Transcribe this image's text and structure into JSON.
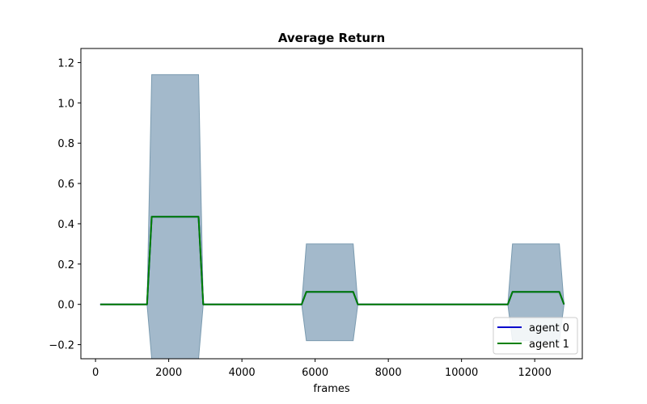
{
  "chart_data": {
    "type": "line",
    "title": "Average Return",
    "xlabel": "frames",
    "ylabel": "",
    "xlim": [
      -400,
      13300
    ],
    "ylim": [
      -0.27,
      1.27
    ],
    "xticks": [
      0,
      2000,
      4000,
      6000,
      8000,
      10000,
      12000
    ],
    "xtick_labels": [
      "0",
      "2000",
      "4000",
      "6000",
      "8000",
      "10000",
      "12000"
    ],
    "yticks": [
      -0.2,
      0.0,
      0.2,
      0.4,
      0.6,
      0.8,
      1.0,
      1.2
    ],
    "ytick_labels": [
      "−0.2",
      "0.0",
      "0.2",
      "0.4",
      "0.6",
      "0.8",
      "1.0",
      "1.2"
    ],
    "x": [
      128,
      1408,
      1536,
      2816,
      2944,
      5632,
      5760,
      7040,
      7168,
      11264,
      11392,
      12672,
      12800
    ],
    "series": [
      {
        "name": "agent 0",
        "color": "#0000cc",
        "values": [
          0.0,
          0.0,
          0.435,
          0.435,
          0.0,
          0.0,
          0.062,
          0.062,
          0.0,
          0.0,
          0.062,
          0.062,
          0.0
        ],
        "band_upper": [
          0.0,
          0.0,
          1.14,
          1.14,
          0.0,
          0.0,
          0.3,
          0.3,
          0.0,
          0.0,
          0.3,
          0.3,
          0.0
        ],
        "band_lower": [
          0.0,
          0.0,
          -0.27,
          -0.27,
          0.0,
          0.0,
          -0.18,
          -0.18,
          0.0,
          0.0,
          -0.18,
          -0.18,
          0.0
        ]
      },
      {
        "name": "agent 1",
        "color": "#008000",
        "values": [
          0.0,
          0.0,
          0.435,
          0.435,
          0.0,
          0.0,
          0.062,
          0.062,
          0.0,
          0.0,
          0.062,
          0.062,
          0.0
        ]
      }
    ],
    "band_color": "#a3b9cb",
    "band_edge_color": "#7b9bb0",
    "legend_position": "lower-right",
    "grid": false
  }
}
